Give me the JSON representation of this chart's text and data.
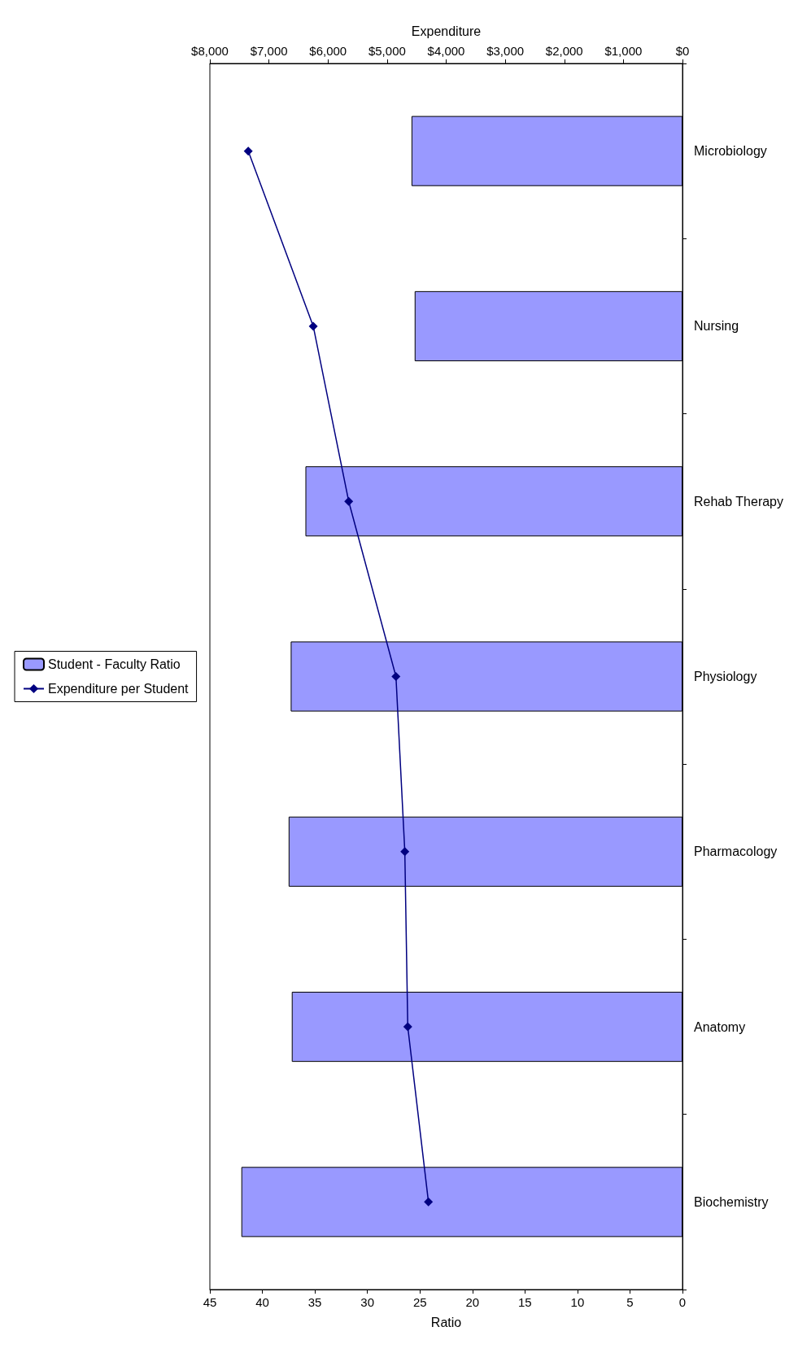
{
  "chart_data": {
    "type": "bar",
    "orientation": "horizontal",
    "categories": [
      "Microbiology",
      "Nursing",
      "Rehab Therapy",
      "Physiology",
      "Pharmacology",
      "Anatomy",
      "Biochemistry"
    ],
    "xlabel": "Ratio",
    "x2label": "Expenditure",
    "series": [
      {
        "name": "Student - Faculty Ratio",
        "color": "#9999ff",
        "values": [
          25.8,
          25.5,
          35.9,
          37.3,
          37.5,
          37.2,
          42
        ]
      },
      {
        "name": "Expenditure per Student",
        "type": "line",
        "axis": "x2",
        "color": "#000080",
        "values": [
          7350,
          6250,
          5650,
          4850,
          4700,
          4650,
          4300
        ]
      }
    ],
    "xlim": [
      45,
      0
    ],
    "xticks": [
      0,
      5,
      10,
      15,
      20,
      25,
      30,
      35,
      40,
      45
    ],
    "x2lim": [
      8000,
      0
    ],
    "x2ticks": [
      {
        "value": 0,
        "label": "$0"
      },
      {
        "value": 1000,
        "label": "$1,000"
      },
      {
        "value": 2000,
        "label": "$2,000"
      },
      {
        "value": 3000,
        "label": "$3,000"
      },
      {
        "value": 4000,
        "label": "$4,000"
      },
      {
        "value": 5000,
        "label": "$5,000"
      },
      {
        "value": 6000,
        "label": "$6,000"
      },
      {
        "value": 7000,
        "label": "$7,000"
      },
      {
        "value": 8000,
        "label": "$8,000"
      }
    ],
    "marker": "diamond",
    "line_style": "solid",
    "grid": false,
    "legend": "left"
  }
}
